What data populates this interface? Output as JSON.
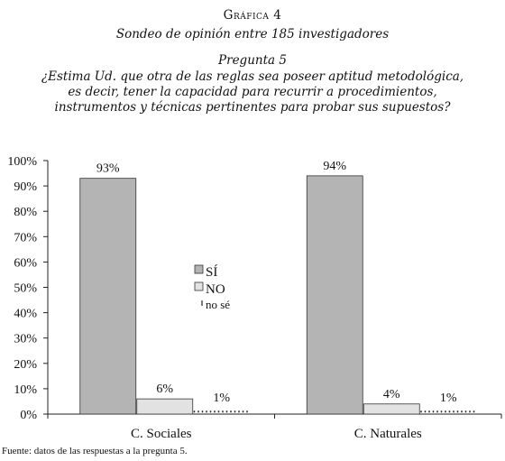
{
  "header": {
    "label": "Gráfica 4",
    "subtitle": "Sondeo de opinión entre 185 investigadores",
    "question_label": "Pregunta 5",
    "question_text": "¿Estima Ud. que otra de las reglas sea poseer aptitud metodológica, es decir, tener la capacidad para recurrir a procedimientos, instrumentos y técnicas pertinentes para probar sus supuestos?"
  },
  "chart_data": {
    "type": "bar",
    "categories": [
      "C. Sociales",
      "C. Naturales"
    ],
    "series": [
      {
        "name": "SÍ",
        "values": [
          93,
          94
        ],
        "color": "#b4b4b4",
        "labels": [
          "93%",
          "94%"
        ]
      },
      {
        "name": "NO",
        "values": [
          6,
          4
        ],
        "color": "#e2e2e2",
        "labels": [
          "6%",
          "4%"
        ]
      },
      {
        "name": "no sé",
        "values": [
          1,
          1
        ],
        "color": "#555555",
        "labels": [
          "1%",
          "1%"
        ]
      }
    ],
    "ylim": [
      0,
      100
    ],
    "yticks": [
      "0%",
      "10%",
      "20%",
      "30%",
      "40%",
      "50%",
      "60%",
      "70%",
      "80%",
      "90%",
      "100%"
    ],
    "legend": "center",
    "grid": false
  },
  "footer": {
    "source": "Fuente: datos de las respuestas a la pregunta 5."
  }
}
